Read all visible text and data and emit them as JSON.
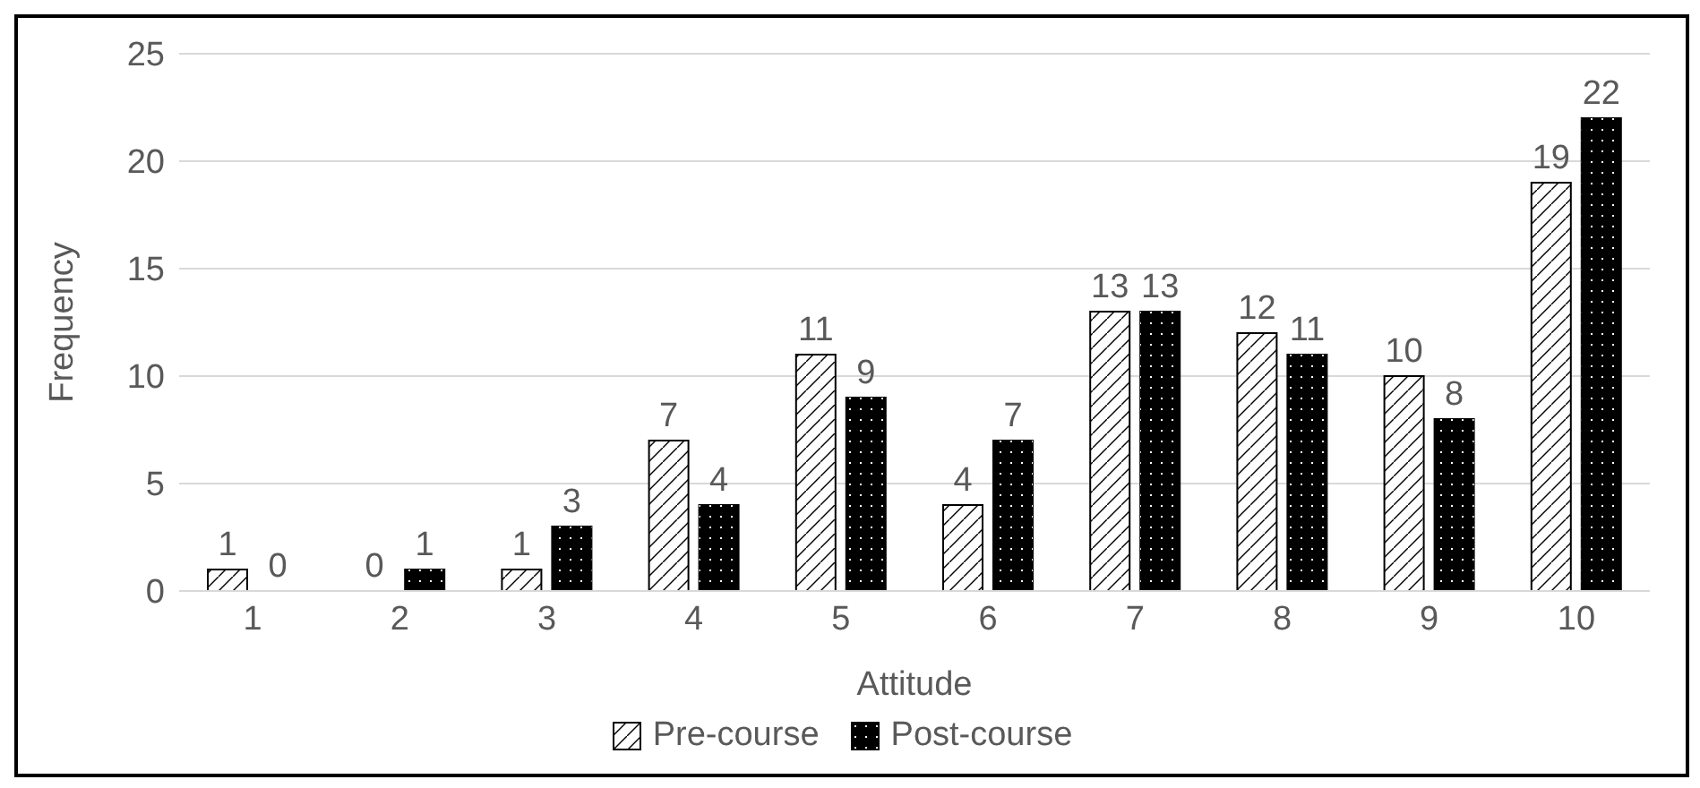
{
  "chart_data": {
    "type": "bar",
    "xlabel": "Attitude",
    "ylabel": "Frequency",
    "categories": [
      "1",
      "2",
      "3",
      "4",
      "5",
      "6",
      "7",
      "8",
      "9",
      "10"
    ],
    "series": [
      {
        "name": "Pre-course",
        "color": "#ffffff",
        "values": [
          1,
          0,
          1,
          7,
          11,
          4,
          13,
          12,
          10,
          19
        ]
      },
      {
        "name": "Post-course",
        "color": "#000000",
        "values": [
          0,
          1,
          3,
          4,
          9,
          7,
          13,
          11,
          8,
          22
        ]
      }
    ],
    "ylim": [
      0,
      25
    ],
    "yticks": [
      0,
      5,
      10,
      15,
      20,
      25
    ],
    "grid": "y",
    "legend": "bottom",
    "data_labels": true
  }
}
